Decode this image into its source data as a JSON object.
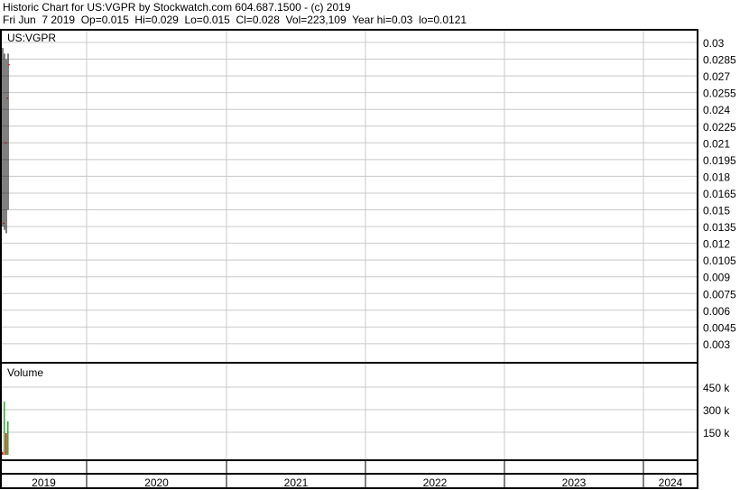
{
  "header": {
    "title": "Historic Chart for US:VGPR by Stockwatch.com 604.687.1500 - (c) 2019",
    "quote": "Fri Jun  7 2019  Op=0.015  Hi=0.029  Lo=0.015  Cl=0.028  Vol=223,109  Year hi=0.03  lo=0.0121"
  },
  "chart_data": [
    {
      "type": "ohlc",
      "title": "US:VGPR",
      "ylim": [
        0.0015,
        0.03
      ],
      "yticks": [
        "0.03",
        "0.0285",
        "0.027",
        "0.0255",
        "0.024",
        "0.0225",
        "0.021",
        "0.0195",
        "0.018",
        "0.0165",
        "0.015",
        "0.0135",
        "0.012",
        "0.0105",
        "0.009",
        "0.0075",
        "0.006",
        "0.0045",
        "0.003"
      ],
      "grid": true,
      "bars": [
        {
          "o": 0.014,
          "h": 0.0295,
          "l": 0.0135,
          "c": 0.0138
        },
        {
          "o": 0.0135,
          "h": 0.029,
          "l": 0.0132,
          "c": 0.021
        },
        {
          "o": 0.022,
          "h": 0.0285,
          "l": 0.0129,
          "c": 0.025
        },
        {
          "o": 0.015,
          "h": 0.029,
          "l": 0.015,
          "c": 0.028
        }
      ],
      "colors": {
        "bar": "#000000",
        "close_tick": "#ff0000"
      }
    },
    {
      "type": "bar",
      "title": "Volume",
      "ylim": [
        0,
        600000
      ],
      "yticks": [
        {
          "v": 450000,
          "label": "450 k"
        },
        {
          "v": 300000,
          "label": "300 k"
        },
        {
          "v": 150000,
          "label": "150 k"
        }
      ],
      "values": [
        20000,
        354000,
        144000,
        223109
      ],
      "colors": [
        "#ff0000",
        "#33aa33",
        "#ff0000",
        "#33aa33"
      ]
    }
  ],
  "x_axis": {
    "years": [
      "2019",
      "2020",
      "2021",
      "2022",
      "2023",
      "2024"
    ]
  }
}
